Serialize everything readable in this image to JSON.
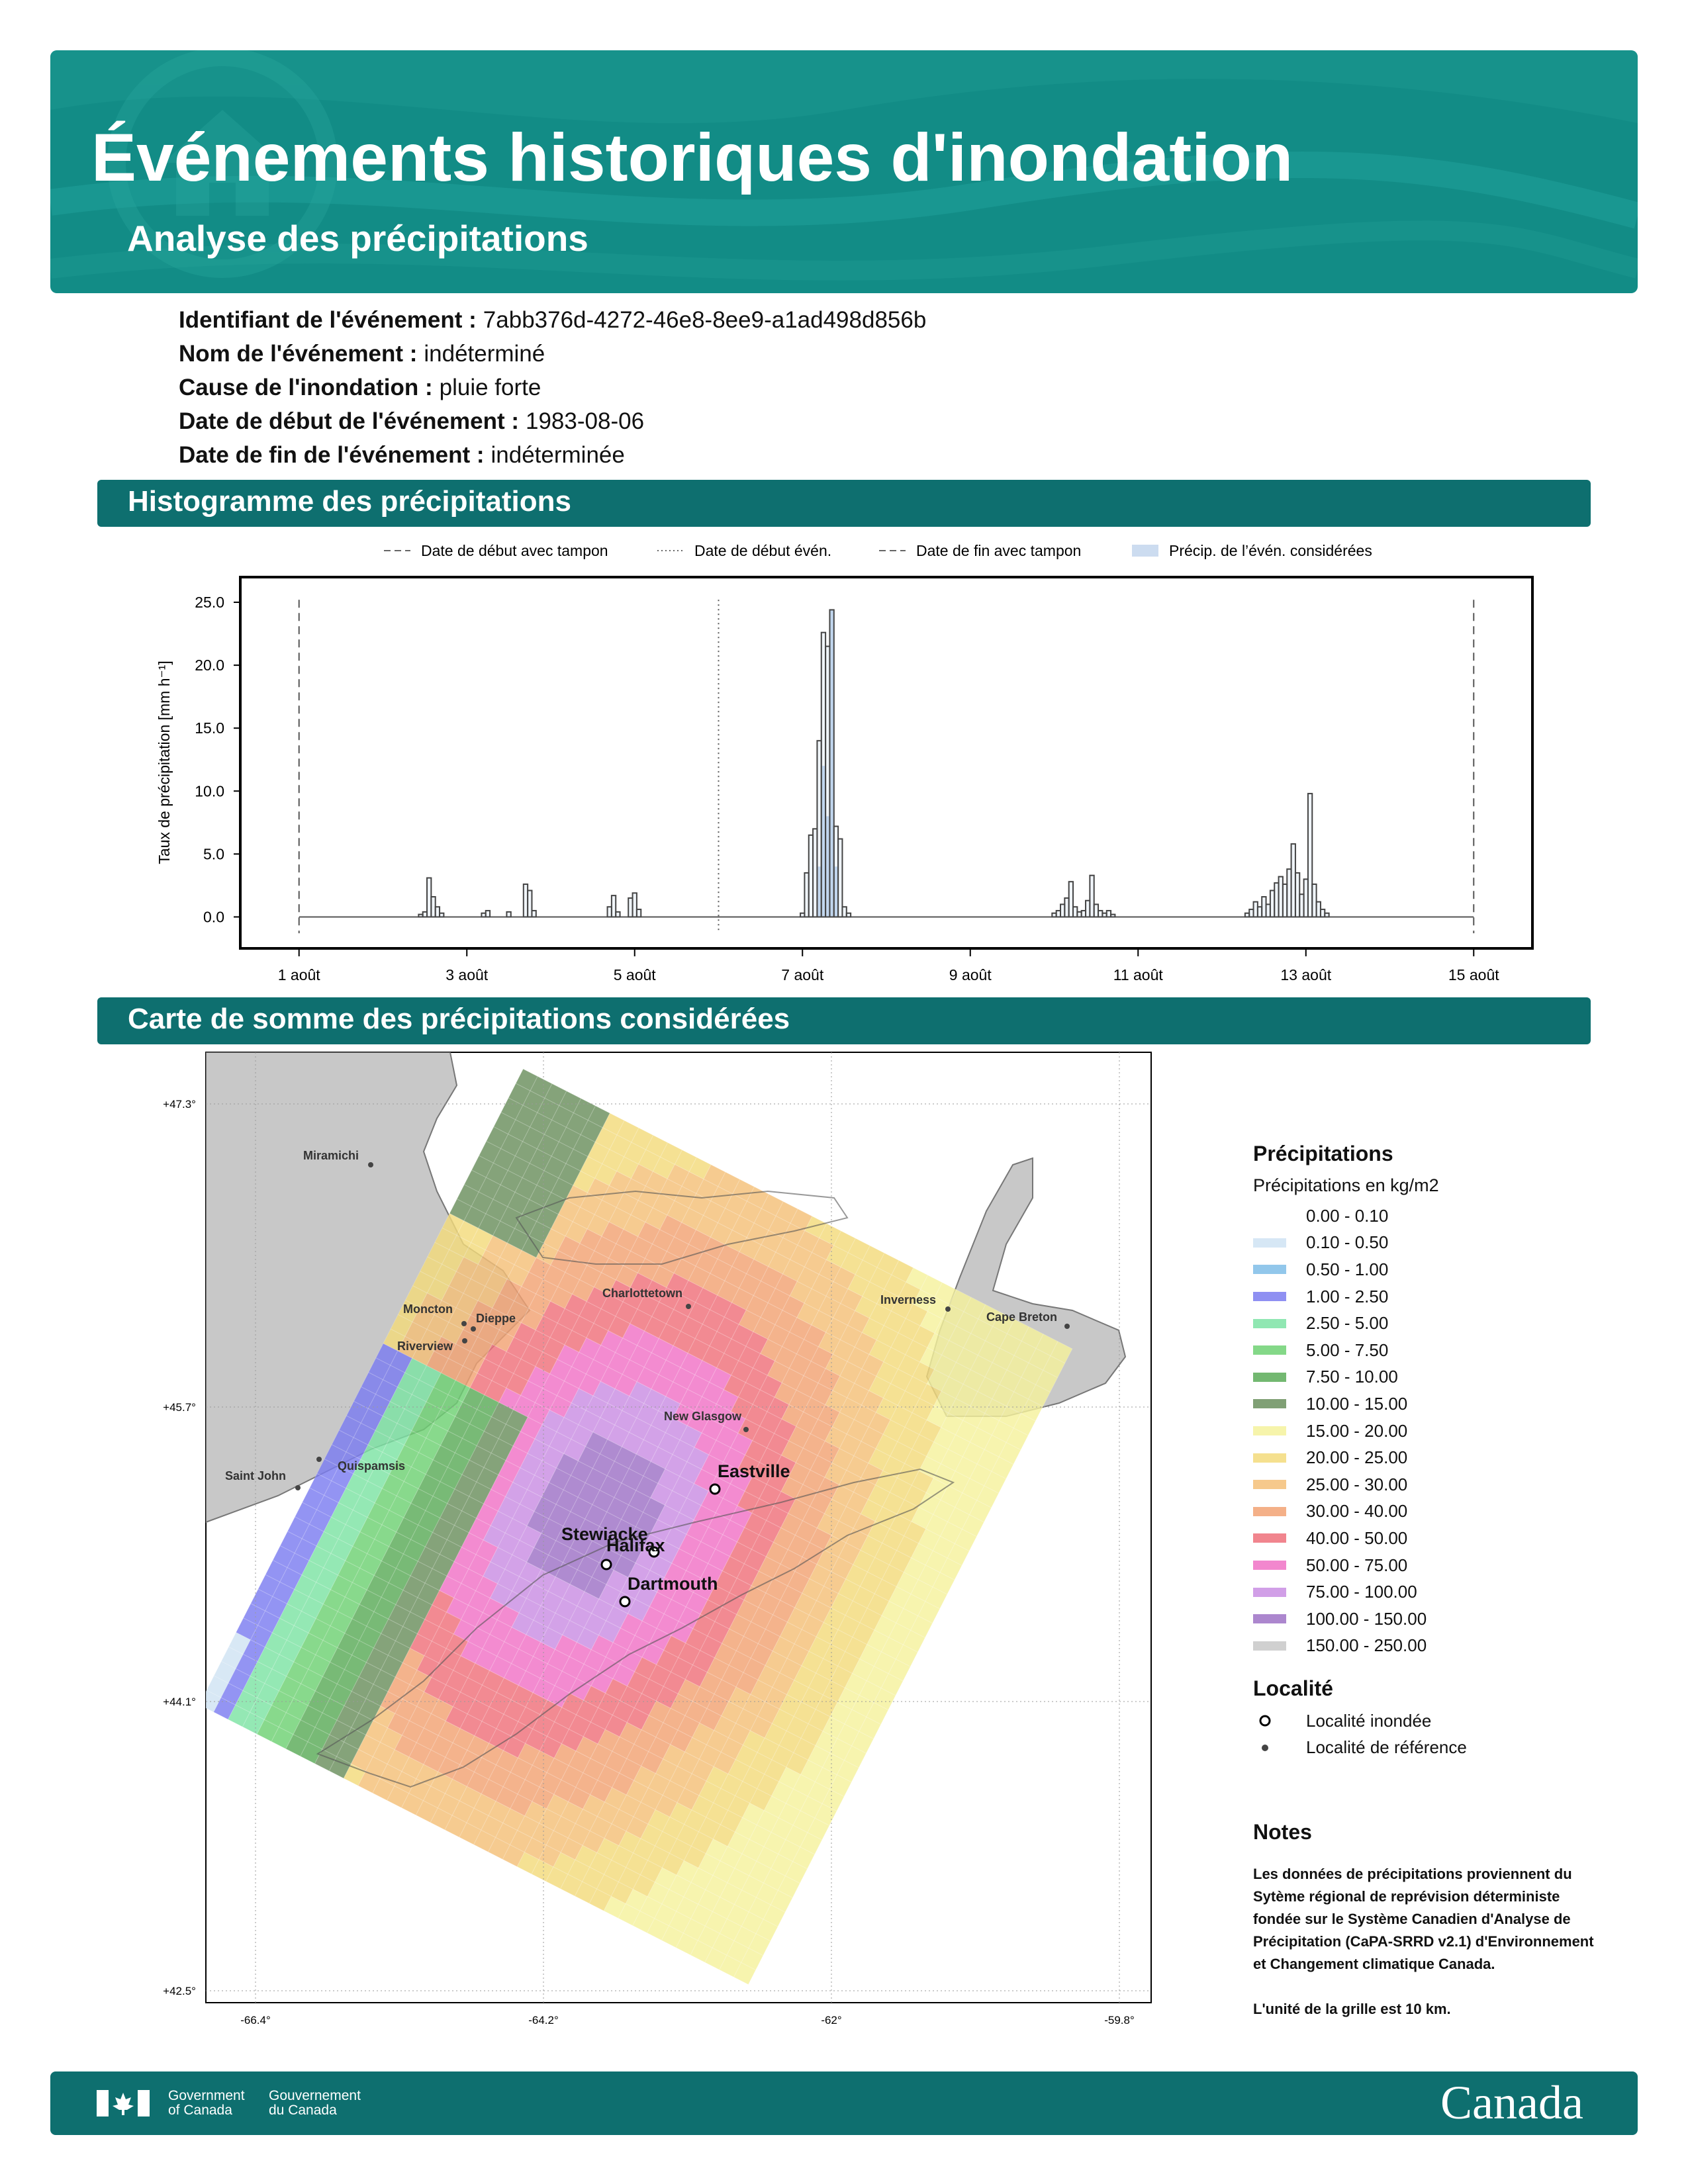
{
  "header": {
    "title": "Événements historiques d'inondation",
    "subtitle": "Analyse des précipitations"
  },
  "event": {
    "rows": [
      {
        "label": "Identifiant de l'événement :",
        "value": "7abb376d-4272-46e8-8ee9-a1ad498d856b"
      },
      {
        "label": "Nom de l'événement :",
        "value": "indéterminé"
      },
      {
        "label": "Cause de l'inondation :",
        "value": "pluie forte"
      },
      {
        "label": "Date de début de l'événement :",
        "value": "1983-08-06"
      },
      {
        "label": "Date de fin de l'événement :",
        "value": "indéterminée"
      }
    ]
  },
  "sections": {
    "histogram": "Histogramme des précipitations",
    "map": "Carte de somme des précipitations considérées"
  },
  "chart_data": {
    "type": "bar",
    "ylabel": "Taux de précipitation [mm h⁻¹]",
    "ylim": [
      -2.5,
      27
    ],
    "yticks": [
      "0.0",
      "5.0",
      "10.0",
      "15.0",
      "20.0",
      "25.0"
    ],
    "xticks": [
      {
        "day": 1,
        "label": "1 août"
      },
      {
        "day": 3,
        "label": "3 août"
      },
      {
        "day": 5,
        "label": "5 août"
      },
      {
        "day": 7,
        "label": "7 août"
      },
      {
        "day": 9,
        "label": "9 août"
      },
      {
        "day": 11,
        "label": "11 août"
      },
      {
        "day": 13,
        "label": "13 août"
      },
      {
        "day": 15,
        "label": "15 août"
      }
    ],
    "xlim_days": [
      0.3,
      15.7
    ],
    "legend": [
      {
        "label": "Date de début avec tampon",
        "style": "dashed"
      },
      {
        "label": "Date de début évén.",
        "style": "dotted"
      },
      {
        "label": "Date de fin avec tampon",
        "style": "dashed"
      },
      {
        "label": "Précip. de l’évén. considérées",
        "style": "patch"
      }
    ],
    "vlines": [
      {
        "day": 1,
        "style": "dashed"
      },
      {
        "day": 6,
        "style": "dotted"
      },
      {
        "day": 15,
        "style": "dashed"
      }
    ],
    "bars": [
      {
        "day": 2.45,
        "value": 0.2
      },
      {
        "day": 2.5,
        "value": 0.4
      },
      {
        "day": 2.55,
        "value": 3.1
      },
      {
        "day": 2.6,
        "value": 1.6
      },
      {
        "day": 2.65,
        "value": 0.8
      },
      {
        "day": 2.7,
        "value": 0.3
      },
      {
        "day": 3.2,
        "value": 0.3
      },
      {
        "day": 3.25,
        "value": 0.5
      },
      {
        "day": 3.5,
        "value": 0.4
      },
      {
        "day": 3.7,
        "value": 2.6
      },
      {
        "day": 3.75,
        "value": 2.1
      },
      {
        "day": 3.8,
        "value": 0.5
      },
      {
        "day": 4.7,
        "value": 0.8
      },
      {
        "day": 4.75,
        "value": 1.7
      },
      {
        "day": 4.8,
        "value": 0.4
      },
      {
        "day": 4.95,
        "value": 1.5
      },
      {
        "day": 5.0,
        "value": 1.9
      },
      {
        "day": 5.05,
        "value": 0.6
      },
      {
        "day": 7.0,
        "value": 0.3
      },
      {
        "day": 7.05,
        "value": 3.5
      },
      {
        "day": 7.1,
        "value": 6.5
      },
      {
        "day": 7.15,
        "value": 7.0
      },
      {
        "day": 7.2,
        "value": 14.0
      },
      {
        "day": 7.25,
        "value": 22.6
      },
      {
        "day": 7.3,
        "value": 21.5
      },
      {
        "day": 7.35,
        "value": 24.4
      },
      {
        "day": 7.4,
        "value": 7.2
      },
      {
        "day": 7.45,
        "value": 6.2
      },
      {
        "day": 7.5,
        "value": 0.8
      },
      {
        "day": 7.55,
        "value": 0.3
      },
      {
        "day": 10.0,
        "value": 0.3
      },
      {
        "day": 10.05,
        "value": 0.5
      },
      {
        "day": 10.1,
        "value": 1.0
      },
      {
        "day": 10.15,
        "value": 1.5
      },
      {
        "day": 10.2,
        "value": 2.8
      },
      {
        "day": 10.25,
        "value": 0.8
      },
      {
        "day": 10.3,
        "value": 0.4
      },
      {
        "day": 10.35,
        "value": 0.5
      },
      {
        "day": 10.4,
        "value": 1.3
      },
      {
        "day": 10.45,
        "value": 3.3
      },
      {
        "day": 10.5,
        "value": 1.0
      },
      {
        "day": 10.55,
        "value": 0.5
      },
      {
        "day": 10.6,
        "value": 0.3
      },
      {
        "day": 10.65,
        "value": 0.5
      },
      {
        "day": 10.7,
        "value": 0.2
      },
      {
        "day": 12.3,
        "value": 0.3
      },
      {
        "day": 12.35,
        "value": 0.6
      },
      {
        "day": 12.4,
        "value": 1.2
      },
      {
        "day": 12.45,
        "value": 0.8
      },
      {
        "day": 12.5,
        "value": 1.6
      },
      {
        "day": 12.55,
        "value": 1.0
      },
      {
        "day": 12.6,
        "value": 2.1
      },
      {
        "day": 12.65,
        "value": 2.7
      },
      {
        "day": 12.7,
        "value": 3.2
      },
      {
        "day": 12.75,
        "value": 2.6
      },
      {
        "day": 12.8,
        "value": 3.8
      },
      {
        "day": 12.85,
        "value": 5.8
      },
      {
        "day": 12.9,
        "value": 3.5
      },
      {
        "day": 12.95,
        "value": 1.8
      },
      {
        "day": 13.0,
        "value": 3.0
      },
      {
        "day": 13.05,
        "value": 9.8
      },
      {
        "day": 13.1,
        "value": 2.6
      },
      {
        "day": 13.15,
        "value": 1.2
      },
      {
        "day": 13.2,
        "value": 0.6
      },
      {
        "day": 13.25,
        "value": 0.3
      }
    ],
    "event_bars": [
      {
        "day": 7.2,
        "value": 4.0
      },
      {
        "day": 7.25,
        "value": 12.0
      },
      {
        "day": 7.3,
        "value": 8.0
      },
      {
        "day": 7.35,
        "value": 24.4
      },
      {
        "day": 7.4,
        "value": 4.0
      }
    ]
  },
  "map": {
    "lat_labels": [
      "+47.3°",
      "+45.7°",
      "+44.1°",
      "+42.5°"
    ],
    "lon_labels": [
      "-66.4°",
      "-64.2°",
      "-62°",
      "-59.8°"
    ],
    "places": [
      {
        "name": "Miramichi",
        "type": "ref"
      },
      {
        "name": "Moncton",
        "type": "ref"
      },
      {
        "name": "Dieppe",
        "type": "ref"
      },
      {
        "name": "Riverview",
        "type": "ref"
      },
      {
        "name": "Charlottetown",
        "type": "ref"
      },
      {
        "name": "Inverness",
        "type": "ref"
      },
      {
        "name": "Cape Breton",
        "type": "ref"
      },
      {
        "name": "New Glasgow",
        "type": "ref"
      },
      {
        "name": "Saint John",
        "type": "ref"
      },
      {
        "name": "Quispamsis",
        "type": "ref"
      },
      {
        "name": "Eastville",
        "type": "flood"
      },
      {
        "name": "Stewiacke",
        "type": "flood"
      },
      {
        "name": "Halifax",
        "type": "flood"
      },
      {
        "name": "Dartmouth",
        "type": "flood"
      }
    ]
  },
  "legend": {
    "title": "Précipitations",
    "subtitle": "Précipitations en kg/m2",
    "classes": [
      {
        "label": "0.00 - 0.10",
        "color": "#ffffff"
      },
      {
        "label": "0.10 - 0.50",
        "color": "#cfe3f3"
      },
      {
        "label": "0.50 - 1.00",
        "color": "#7fbde8"
      },
      {
        "label": "1.00 - 2.50",
        "color": "#7b7cf0"
      },
      {
        "label": "2.50 - 5.00",
        "color": "#7de3a4"
      },
      {
        "label": "5.00 - 7.50",
        "color": "#6ed173"
      },
      {
        "label": "7.50 - 10.00",
        "color": "#5aab58"
      },
      {
        "label": "10.00 - 15.00",
        "color": "#6a8f5d"
      },
      {
        "label": "15.00 - 20.00",
        "color": "#f5f29c"
      },
      {
        "label": "20.00 - 25.00",
        "color": "#f3da7b"
      },
      {
        "label": "25.00 - 30.00",
        "color": "#f4bf78"
      },
      {
        "label": "30.00 - 40.00",
        "color": "#f2a273"
      },
      {
        "label": "40.00 - 50.00",
        "color": "#ef707a"
      },
      {
        "label": "50.00 - 75.00",
        "color": "#f072c6"
      },
      {
        "label": "75.00 - 100.00",
        "color": "#c98ee3"
      },
      {
        "label": "100.00 - 150.00",
        "color": "#9e72c6"
      },
      {
        "label": "150.00 - 250.00",
        "color": "#c8c8c8"
      }
    ],
    "locality_title": "Localité",
    "locality_items": [
      {
        "label": "Localité inondée",
        "marker": "open-circle"
      },
      {
        "label": "Localité de référence",
        "marker": "dot"
      }
    ]
  },
  "notes": {
    "title": "Notes",
    "text1": "Les données de précipitations proviennent du Sytème régional de reprévision déterministe fondée sur le Système Canadien d'Analyse de Précipitation (CaPA-SRRD v2.1) d'Environnement et Changement climatique Canada.",
    "text2": "L'unité de la grille est 10 km."
  },
  "footer": {
    "gov_en": [
      "Government",
      "of Canada"
    ],
    "gov_fr": [
      "Gouvernement",
      "du Canada"
    ],
    "wordmark": "Canada"
  }
}
